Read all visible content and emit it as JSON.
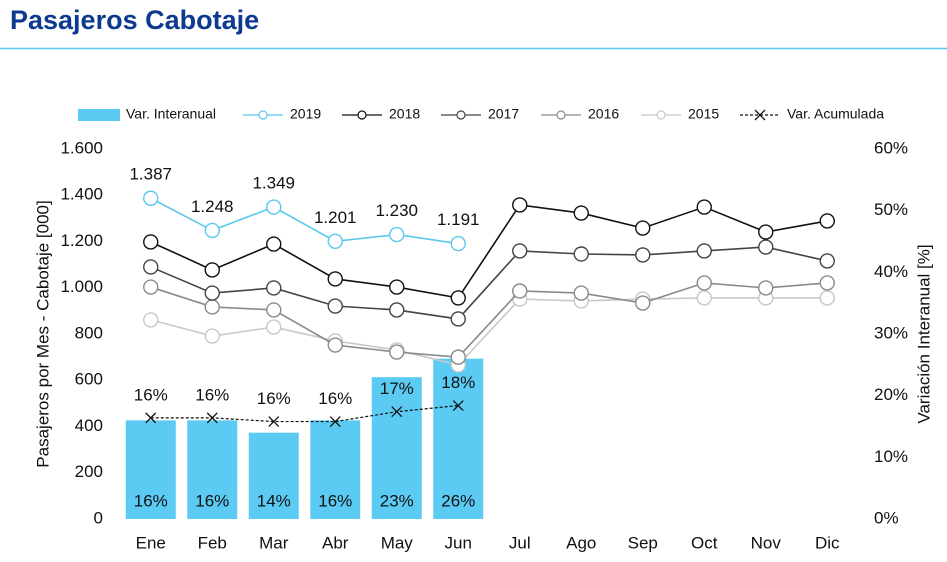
{
  "chart_data": {
    "type": "combo",
    "title": "Pasajeros Cabotaje",
    "ylabel": "Pasajeros por Mes - Cabotaje [000]",
    "y2label": "Variación Interanual [%]",
    "categories": [
      "Ene",
      "Feb",
      "Mar",
      "Abr",
      "May",
      "Jun",
      "Jul",
      "Ago",
      "Sep",
      "Oct",
      "Nov",
      "Dic"
    ],
    "ylim": [
      0,
      1600
    ],
    "yticks": [
      0,
      200,
      400,
      600,
      800,
      {
        "value": 1000,
        "label": "1.000"
      },
      {
        "value": 1200,
        "label": "1.200"
      },
      {
        "value": 1400,
        "label": "1.400"
      },
      {
        "value": 1600,
        "label": "1.600"
      }
    ],
    "y2lim": [
      0,
      60
    ],
    "y2ticks": [
      {
        "value": 0,
        "label": "0%"
      },
      {
        "value": 10,
        "label": "10%"
      },
      {
        "value": 20,
        "label": "20%"
      },
      {
        "value": 30,
        "label": "30%"
      },
      {
        "value": 40,
        "label": "40%"
      },
      {
        "value": 50,
        "label": "50%"
      },
      {
        "value": 60,
        "label": "60%"
      }
    ],
    "grid": false,
    "legend": "top",
    "series": [
      {
        "name": "Var. Interanual",
        "type": "bar",
        "axis": "y2",
        "color": "#5ccbf4",
        "values": [
          16,
          16,
          14,
          16,
          23,
          26,
          null,
          null,
          null,
          null,
          null,
          null
        ],
        "value_labels": [
          "16%",
          "16%",
          "14%",
          "16%",
          "23%",
          "26%",
          null,
          null,
          null,
          null,
          null,
          null
        ]
      },
      {
        "name": "2019",
        "type": "line",
        "color": "#5bc8ef",
        "values": [
          1387,
          1248,
          1349,
          1201,
          1230,
          1191,
          null,
          null,
          null,
          null,
          null,
          null
        ],
        "value_labels": [
          "1.387",
          "1.248",
          "1.349",
          "1.201",
          "1.230",
          "1.191",
          null,
          null,
          null,
          null,
          null,
          null
        ]
      },
      {
        "name": "2018",
        "type": "line",
        "color": "#111111",
        "values": [
          1198,
          1077,
          1189,
          1038,
          1003,
          956,
          1358,
          1323,
          1258,
          1349,
          1241,
          1289
        ]
      },
      {
        "name": "2017",
        "type": "line",
        "color": "#444444",
        "values": [
          1090,
          977,
          999,
          921,
          904,
          865,
          1159,
          1146,
          1142,
          1159,
          1176,
          1116
        ]
      },
      {
        "name": "2016",
        "type": "line",
        "color": "#8a8a8a",
        "values": [
          1003,
          917,
          904,
          752,
          722,
          700,
          986,
          977,
          934,
          1021,
          999,
          1021
        ]
      },
      {
        "name": "2015",
        "type": "line",
        "color": "#c8c8c8",
        "values": [
          861,
          791,
          830,
          770,
          731,
          666,
          951,
          943,
          951,
          956,
          956,
          956
        ]
      },
      {
        "name": "Var. Acumulada",
        "type": "cross",
        "axis": "y2",
        "color": "#111111",
        "values": [
          16.4,
          16.4,
          15.8,
          15.8,
          17.4,
          18.4,
          null,
          null,
          null,
          null,
          null,
          null
        ],
        "value_labels": [
          "16%",
          "16%",
          "16%",
          "16%",
          "17%",
          "18%",
          null,
          null,
          null,
          null,
          null,
          null
        ]
      }
    ]
  }
}
